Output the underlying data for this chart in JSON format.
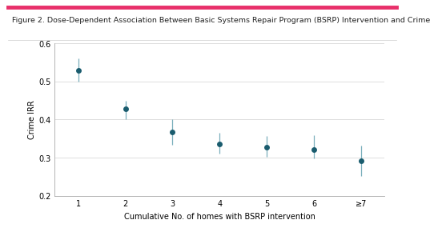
{
  "title": "Figure 2. Dose-Dependent Association Between Basic Systems Repair Program (BSRP) Intervention and Crime",
  "xlabel": "Cumulative No. of homes with BSRP intervention",
  "ylabel": "Crime IRR",
  "x_labels": [
    "1",
    "2",
    "3",
    "4",
    "5",
    "6",
    "≥7"
  ],
  "x_values": [
    1,
    2,
    3,
    4,
    5,
    6,
    7
  ],
  "y_values": [
    0.53,
    0.428,
    0.368,
    0.335,
    0.328,
    0.32,
    0.291
  ],
  "y_err_lower": [
    0.03,
    0.028,
    0.035,
    0.025,
    0.025,
    0.022,
    0.04
  ],
  "y_err_upper": [
    0.03,
    0.022,
    0.032,
    0.03,
    0.028,
    0.038,
    0.04
  ],
  "ylim": [
    0.2,
    0.6
  ],
  "yticks": [
    0.2,
    0.3,
    0.4,
    0.5,
    0.6
  ],
  "marker_color": "#1a5c6e",
  "marker_size": 5,
  "ecolor": "#7aafbc",
  "title_fontsize": 6.8,
  "axis_fontsize": 7.0,
  "tick_fontsize": 7.0,
  "background_color": "#ffffff",
  "top_border_color": "#e8306a",
  "title_underline_color": "#cccccc"
}
